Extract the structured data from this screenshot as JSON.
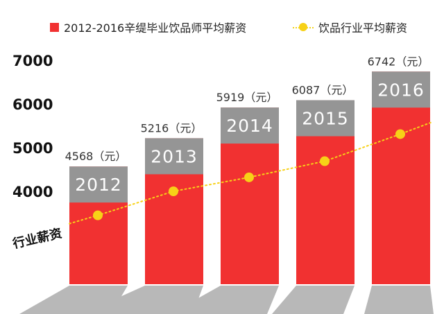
{
  "legend": {
    "series1": "2012-2016辛缇毕业饮品师平均薪资",
    "series2": "饮品行业平均薪资"
  },
  "colors": {
    "bar_red": "#f13131",
    "bar_cap_gray": "#959595",
    "industry_line": "#f7d117",
    "floor_gray": "#b8b8b8"
  },
  "chart_data": {
    "type": "bar",
    "categories": [
      "2012",
      "2013",
      "2014",
      "2015",
      "2016"
    ],
    "series": [
      {
        "name": "2012-2016辛缇毕业饮品师平均薪资",
        "values": [
          4568,
          5216,
          5919,
          6087,
          6742
        ],
        "value_labels": [
          "4568（元）",
          "5216（元）",
          "5919（元）",
          "6087（元）",
          "6742（元）"
        ]
      },
      {
        "name": "饮品行业平均薪资",
        "type": "line",
        "values": [
          3450,
          4000,
          4320,
          4690,
          5310
        ]
      }
    ],
    "yticks": [
      "7000",
      "6000",
      "5000",
      "4000"
    ],
    "ylim": [
      2000,
      7000
    ],
    "line_label": "行业薪资"
  }
}
